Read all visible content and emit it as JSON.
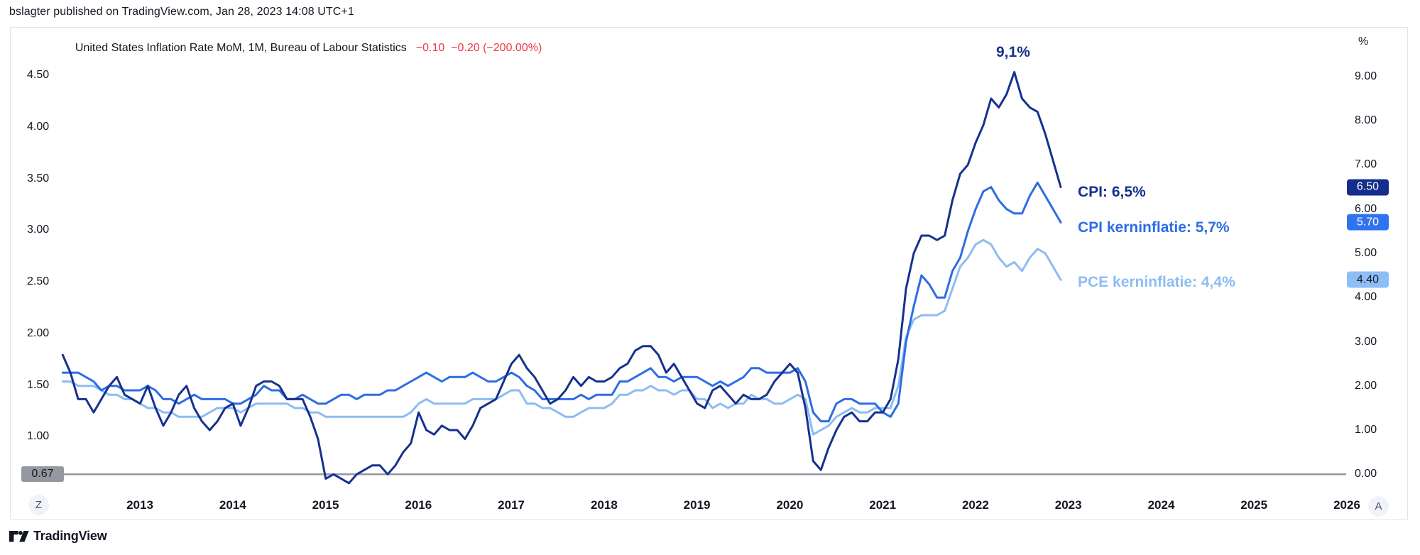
{
  "header": {
    "published_line": "bslagter published on TradingView.com, Jan 28, 2023 14:08 UTC+1"
  },
  "chart": {
    "title": "United States Inflation Rate MoM, 1M, Bureau of Labour Statistics",
    "change_text": "−0.10  −0.20 (−200.00%)"
  },
  "annotations": {
    "peak_label": "9,1%",
    "series_labels": [
      {
        "text": "CPI: 6,5%",
        "color": "#16318f"
      },
      {
        "text": "CPI kerninflatie: 5,7%",
        "color": "#2e6ce4"
      },
      {
        "text": "PCE kerninflatie: 4,4%",
        "color": "#8dbcf2"
      }
    ]
  },
  "right_axis": {
    "unit": "%",
    "ticks": [
      {
        "label": "9.00",
        "value": 9.0
      },
      {
        "label": "8.00",
        "value": 8.0
      },
      {
        "label": "7.00",
        "value": 7.0
      },
      {
        "label": "6.00",
        "value": 6.0
      },
      {
        "label": "5.00",
        "value": 5.0
      },
      {
        "label": "4.00",
        "value": 4.0
      },
      {
        "label": "3.00",
        "value": 3.0
      },
      {
        "label": "2.00",
        "value": 2.0
      },
      {
        "label": "1.00",
        "value": 1.0
      },
      {
        "label": "0.00",
        "value": 0.0
      }
    ],
    "badges": [
      {
        "label": "6.50",
        "value": 6.5,
        "bg": "#142e8c",
        "fg": "#ffffff"
      },
      {
        "label": "5.70",
        "value": 5.7,
        "bg": "#3173ef",
        "fg": "#ffffff"
      },
      {
        "label": "4.40",
        "value": 4.4,
        "bg": "#8dbef6",
        "fg": "#17191f"
      }
    ]
  },
  "left_axis": {
    "ticks": [
      {
        "label": "4.50",
        "value": 4.5
      },
      {
        "label": "4.00",
        "value": 4.0
      },
      {
        "label": "3.50",
        "value": 3.5
      },
      {
        "label": "3.00",
        "value": 3.0
      },
      {
        "label": "2.50",
        "value": 2.5
      },
      {
        "label": "2.00",
        "value": 2.0
      },
      {
        "label": "1.50",
        "value": 1.5
      },
      {
        "label": "1.00",
        "value": 1.0
      }
    ],
    "badge_label": "0.67"
  },
  "x_axis": {
    "years": [
      "2013",
      "2014",
      "2015",
      "2016",
      "2017",
      "2018",
      "2019",
      "2020",
      "2021",
      "2022",
      "2023",
      "2024",
      "2025",
      "2026"
    ],
    "left_button_label": "Z",
    "right_button_label": "A"
  },
  "footer": {
    "brand": "TradingView"
  },
  "colors": {
    "text": "#131722",
    "red": "#f23645",
    "border": "#e0e3eb",
    "zero_line": "#9598a1",
    "button_bg": "#f0f3fa",
    "cpi": "#16318f",
    "core_cpi": "#2e6ce4",
    "core_pce": "#8dbcf2"
  },
  "chart_data": {
    "type": "line",
    "title": "United States Inflation Rate MoM, 1M, Bureau of Labour Statistics",
    "frequency": "monthly",
    "x_start": "2012-03",
    "x_end": "2022-12",
    "x_visible_years": [
      2013,
      2026
    ],
    "y_axis_right": {
      "unit": "%",
      "ticks": [
        0,
        1,
        2,
        3,
        4,
        5,
        6,
        7,
        8,
        9
      ],
      "range": [
        -0.4,
        10.1
      ]
    },
    "y_axis_left": {
      "ticks": [
        1.0,
        1.5,
        2.0,
        2.5,
        3.0,
        3.5,
        4.0,
        4.5
      ],
      "marker_value": 0.67
    },
    "zero_line": 0.0,
    "grid": false,
    "annotations": [
      {
        "text": "9,1%",
        "x": "2022-06",
        "y": 9.1
      }
    ],
    "series": [
      {
        "name": "CPI",
        "last_value_label": "CPI: 6,5%",
        "color": "#16318f",
        "values": [
          2.7,
          2.3,
          1.7,
          1.7,
          1.4,
          1.7,
          2.0,
          2.2,
          1.8,
          1.7,
          1.6,
          2.0,
          1.5,
          1.1,
          1.4,
          1.8,
          2.0,
          1.5,
          1.2,
          1.0,
          1.2,
          1.5,
          1.6,
          1.1,
          1.5,
          2.0,
          2.1,
          2.1,
          2.0,
          1.7,
          1.7,
          1.7,
          1.3,
          0.8,
          -0.1,
          0.0,
          -0.1,
          -0.2,
          0.0,
          0.1,
          0.2,
          0.2,
          0.0,
          0.2,
          0.5,
          0.7,
          1.4,
          1.0,
          0.9,
          1.1,
          1.0,
          1.0,
          0.8,
          1.1,
          1.5,
          1.6,
          1.7,
          2.1,
          2.5,
          2.7,
          2.4,
          2.2,
          1.9,
          1.6,
          1.7,
          1.9,
          2.2,
          2.0,
          2.2,
          2.1,
          2.1,
          2.2,
          2.4,
          2.5,
          2.8,
          2.9,
          2.9,
          2.7,
          2.3,
          2.5,
          2.2,
          1.9,
          1.6,
          1.5,
          1.9,
          2.0,
          1.8,
          1.6,
          1.8,
          1.7,
          1.7,
          1.8,
          2.1,
          2.3,
          2.5,
          2.3,
          1.5,
          0.3,
          0.1,
          0.6,
          1.0,
          1.3,
          1.4,
          1.2,
          1.2,
          1.4,
          1.4,
          1.7,
          2.6,
          4.2,
          5.0,
          5.4,
          5.4,
          5.3,
          5.4,
          6.2,
          6.8,
          7.0,
          7.5,
          7.9,
          8.5,
          8.3,
          8.6,
          9.1,
          8.5,
          8.3,
          8.2,
          7.7,
          7.1,
          6.5
        ]
      },
      {
        "name": "CPI kerninflatie",
        "last_value_label": "CPI kerninflatie: 5,7%",
        "color": "#2e6ce4",
        "values": [
          2.3,
          2.3,
          2.3,
          2.2,
          2.1,
          1.9,
          2.0,
          2.0,
          1.9,
          1.9,
          1.9,
          2.0,
          1.9,
          1.7,
          1.7,
          1.6,
          1.7,
          1.8,
          1.7,
          1.7,
          1.7,
          1.7,
          1.6,
          1.6,
          1.7,
          1.8,
          2.0,
          1.9,
          1.9,
          1.7,
          1.7,
          1.8,
          1.7,
          1.6,
          1.6,
          1.7,
          1.8,
          1.8,
          1.7,
          1.8,
          1.8,
          1.8,
          1.9,
          1.9,
          2.0,
          2.1,
          2.2,
          2.3,
          2.2,
          2.1,
          2.2,
          2.2,
          2.2,
          2.3,
          2.2,
          2.1,
          2.1,
          2.2,
          2.3,
          2.2,
          2.0,
          1.9,
          1.7,
          1.7,
          1.7,
          1.7,
          1.7,
          1.8,
          1.7,
          1.8,
          1.8,
          1.8,
          2.1,
          2.1,
          2.2,
          2.3,
          2.4,
          2.2,
          2.2,
          2.1,
          2.2,
          2.2,
          2.2,
          2.1,
          2.0,
          2.1,
          2.0,
          2.1,
          2.2,
          2.4,
          2.4,
          2.3,
          2.3,
          2.3,
          2.3,
          2.4,
          2.1,
          1.4,
          1.2,
          1.2,
          1.6,
          1.7,
          1.7,
          1.6,
          1.6,
          1.6,
          1.4,
          1.3,
          1.6,
          3.0,
          3.8,
          4.5,
          4.3,
          4.0,
          4.0,
          4.6,
          4.9,
          5.5,
          6.0,
          6.4,
          6.5,
          6.2,
          6.0,
          5.9,
          5.9,
          6.3,
          6.6,
          6.3,
          6.0,
          5.7
        ]
      },
      {
        "name": "PCE kerninflatie",
        "last_value_label": "PCE kerninflatie: 4,4%",
        "color": "#8dbcf2",
        "values": [
          2.1,
          2.1,
          2.0,
          2.0,
          2.0,
          1.9,
          1.8,
          1.8,
          1.7,
          1.7,
          1.6,
          1.5,
          1.5,
          1.4,
          1.4,
          1.3,
          1.3,
          1.3,
          1.3,
          1.4,
          1.5,
          1.5,
          1.5,
          1.4,
          1.5,
          1.6,
          1.6,
          1.6,
          1.6,
          1.6,
          1.5,
          1.5,
          1.4,
          1.4,
          1.3,
          1.3,
          1.3,
          1.3,
          1.3,
          1.3,
          1.3,
          1.3,
          1.3,
          1.3,
          1.3,
          1.4,
          1.6,
          1.7,
          1.6,
          1.6,
          1.6,
          1.6,
          1.6,
          1.7,
          1.7,
          1.7,
          1.7,
          1.8,
          1.9,
          1.9,
          1.6,
          1.6,
          1.5,
          1.5,
          1.4,
          1.3,
          1.3,
          1.4,
          1.5,
          1.5,
          1.5,
          1.6,
          1.8,
          1.8,
          1.9,
          1.9,
          2.0,
          1.9,
          1.9,
          1.8,
          1.9,
          1.9,
          1.7,
          1.7,
          1.5,
          1.6,
          1.5,
          1.6,
          1.6,
          1.8,
          1.7,
          1.7,
          1.6,
          1.6,
          1.7,
          1.8,
          1.7,
          0.9,
          1.0,
          1.1,
          1.3,
          1.4,
          1.5,
          1.4,
          1.4,
          1.5,
          1.5,
          1.5,
          2.0,
          3.1,
          3.5,
          3.6,
          3.6,
          3.6,
          3.7,
          4.2,
          4.7,
          4.9,
          5.2,
          5.3,
          5.2,
          4.9,
          4.7,
          4.8,
          4.6,
          4.9,
          5.1,
          5.0,
          4.7,
          4.4
        ]
      }
    ]
  }
}
